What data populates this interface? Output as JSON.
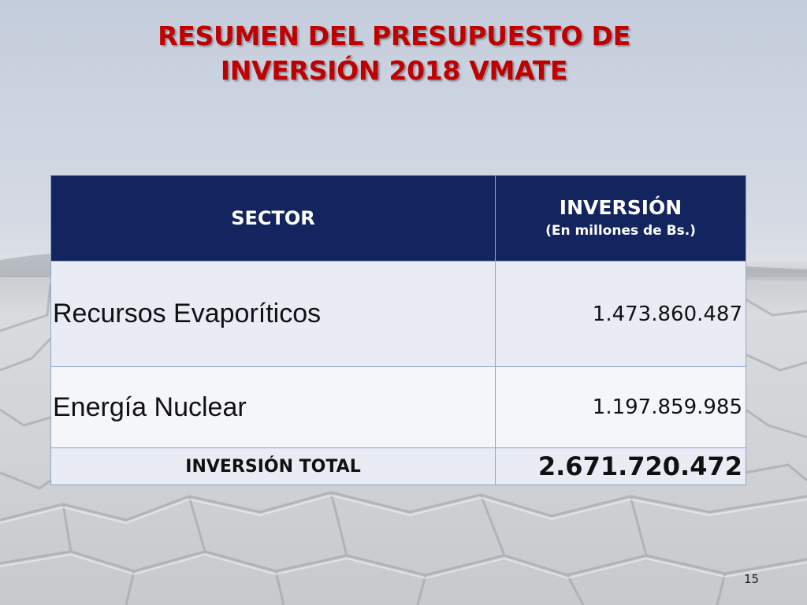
{
  "slide": {
    "title_line1": "RESUMEN DEL PRESUPUESTO DE",
    "title_line2": "INVERSIÓN 2018 VMATE",
    "page_number": "15",
    "colors": {
      "title": "#c00000",
      "header_bg": "#13245f",
      "header_text": "#ffffff"
    }
  },
  "table": {
    "header": {
      "sector": "SECTOR",
      "investment": "INVERSIÓN",
      "investment_unit": "(En millones de Bs.)"
    },
    "rows": [
      {
        "sector": "Recursos Evaporíticos",
        "investment": "1.473.860.487"
      },
      {
        "sector": "Energía Nuclear",
        "investment": "1.197.859.985"
      }
    ],
    "total": {
      "label": "INVERSIÓN TOTAL",
      "value": "2.671.720.472"
    }
  }
}
